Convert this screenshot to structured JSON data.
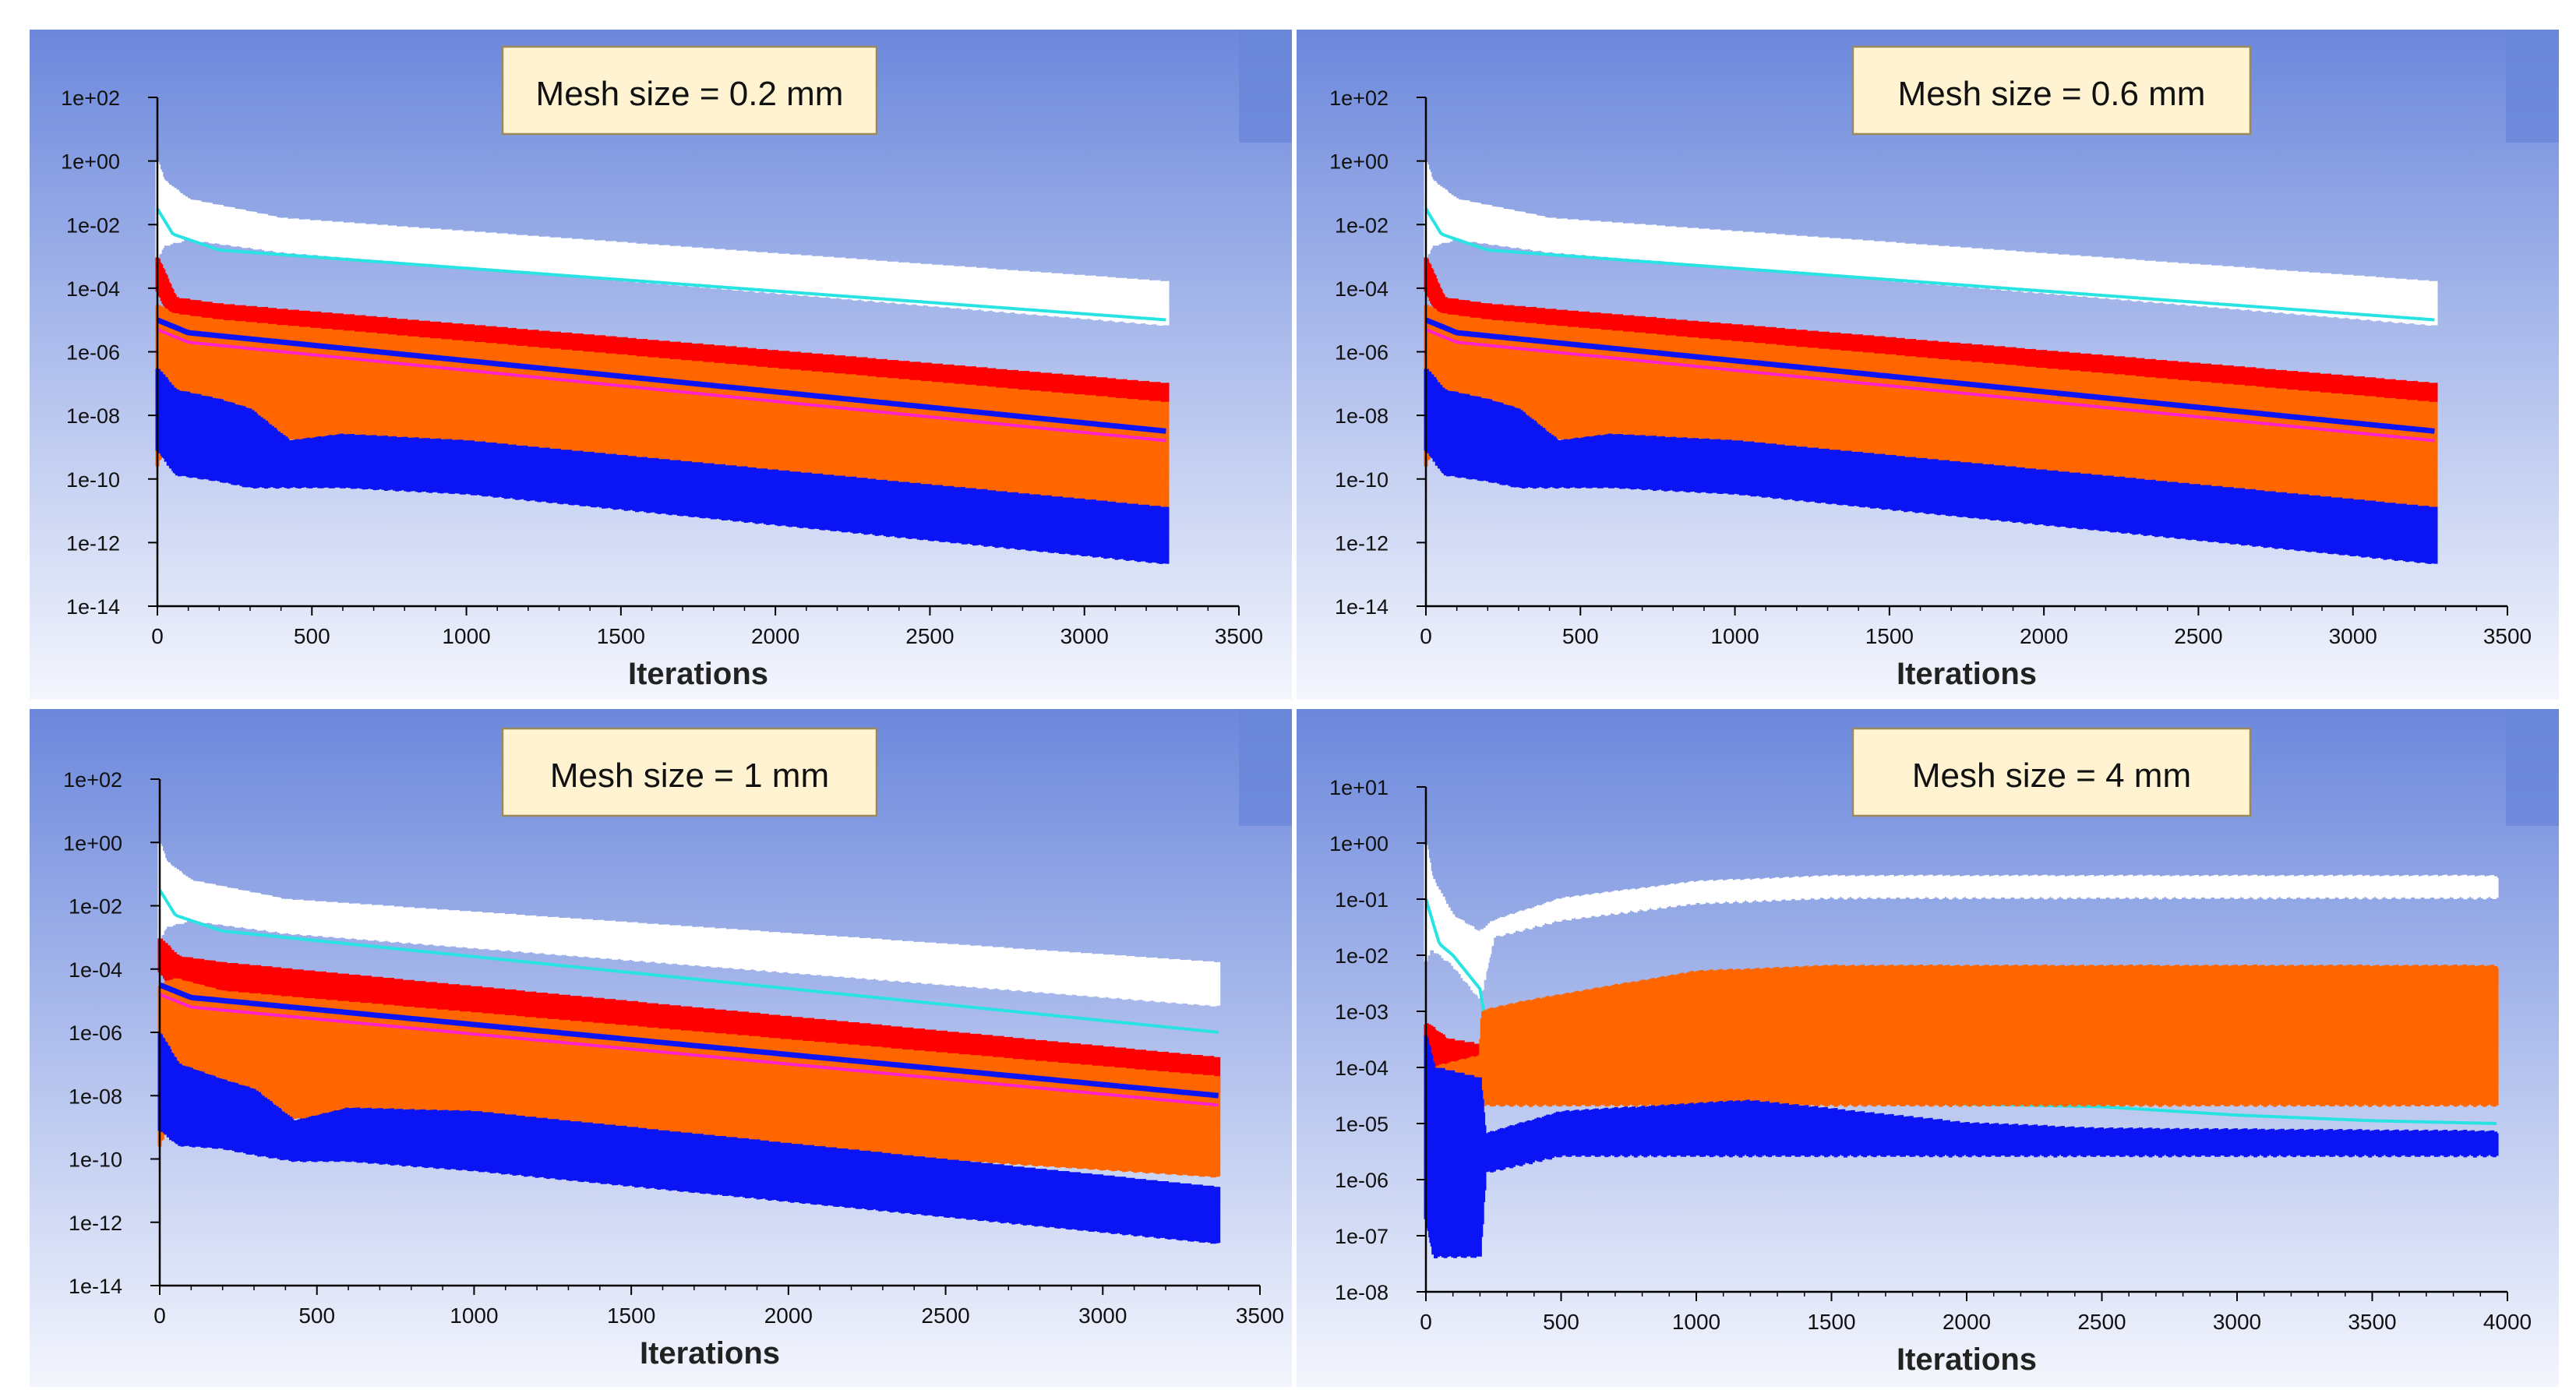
{
  "colors": {
    "panel_top": "#6c88dc",
    "panel_bottom": "#f4f6fd",
    "white_band": "#ffffff",
    "cyan_line": "#29e3e3",
    "red_band": "#ff0000",
    "blue_line": "#1a1aff",
    "orange_band": "#ff6600",
    "blue_band": "#0a14f5",
    "magenta_line": "#ff22cc",
    "title_box_fill": "#fff3d1",
    "title_box_border": "#9a8a5a"
  },
  "chart_data": [
    {
      "type": "line",
      "title": "Mesh size = 0.2 mm",
      "xlabel": "Iterations",
      "ylabel": "",
      "xlim": [
        0,
        3500
      ],
      "ylim_exp": [
        -14,
        2
      ],
      "x_ticks": [
        "0",
        "500",
        "1000",
        "1500",
        "2000",
        "2500",
        "3000",
        "3500"
      ],
      "y_ticks": [
        "1e-14",
        "1e-12",
        "1e-10",
        "1e-08",
        "1e-06",
        "1e-04",
        "1e-02",
        "1e+00",
        "1e+02"
      ],
      "end_iteration": 3270,
      "series": [
        {
          "name": "white-band",
          "kind": "band",
          "color": "white",
          "x": [
            0,
            20,
            100,
            400,
            3270
          ],
          "low": [
            -3,
            -2.6,
            -2.4,
            -2.8,
            -5.1
          ],
          "high": [
            0,
            -0.6,
            -1.2,
            -1.8,
            -3.8
          ]
        },
        {
          "name": "cyan-line",
          "kind": "line",
          "color": "cyan",
          "x": [
            0,
            50,
            200,
            3270
          ],
          "y": [
            -1.5,
            -2.3,
            -2.8,
            -5.0
          ]
        },
        {
          "name": "red-band",
          "kind": "band",
          "color": "red",
          "x": [
            0,
            60,
            200,
            3270
          ],
          "low": [
            -4,
            -5.3,
            -5.5,
            -8.3
          ],
          "high": [
            -3,
            -4.3,
            -4.5,
            -7.0
          ]
        },
        {
          "name": "orange-band",
          "kind": "band",
          "color": "orange",
          "x": [
            0,
            50,
            200,
            3270
          ],
          "low": [
            -9.5,
            -8.3,
            -8.5,
            -10.9
          ],
          "high": [
            -4.5,
            -4.8,
            -5.0,
            -7.6
          ]
        },
        {
          "name": "blue-line",
          "kind": "line",
          "color": "blue",
          "x": [
            0,
            100,
            3270
          ],
          "y": [
            -5,
            -5.4,
            -8.5
          ]
        },
        {
          "name": "magenta-line",
          "kind": "line",
          "color": "magenta",
          "x": [
            0,
            100,
            3270
          ],
          "y": [
            -5.3,
            -5.7,
            -8.8
          ]
        },
        {
          "name": "blue-band",
          "kind": "band",
          "color": "blue",
          "x": [
            0,
            60,
            200,
            300,
            430,
            600,
            1000,
            3270
          ],
          "low": [
            -9,
            -9.8,
            -10.0,
            -10.2,
            -10.2,
            -10.2,
            -10.4,
            -12.6
          ],
          "high": [
            -6.5,
            -7.2,
            -7.5,
            -7.8,
            -8.8,
            -8.6,
            -8.8,
            -10.9
          ]
        }
      ]
    },
    {
      "type": "line",
      "title": "Mesh size = 0.6 mm",
      "xlabel": "Iterations",
      "ylabel": "",
      "xlim": [
        0,
        3500
      ],
      "ylim_exp": [
        -14,
        2
      ],
      "x_ticks": [
        "0",
        "500",
        "1000",
        "1500",
        "2000",
        "2500",
        "3000",
        "3500"
      ],
      "y_ticks": [
        "1e-14",
        "1e-12",
        "1e-10",
        "1e-08",
        "1e-06",
        "1e-04",
        "1e-02",
        "1e+00",
        "1e+02"
      ],
      "end_iteration": 3270,
      "series": [
        {
          "name": "white-band",
          "kind": "band",
          "color": "white",
          "x": [
            0,
            20,
            100,
            400,
            3270
          ],
          "low": [
            -3,
            -2.6,
            -2.4,
            -2.8,
            -5.1
          ],
          "high": [
            0,
            -0.6,
            -1.2,
            -1.8,
            -3.8
          ]
        },
        {
          "name": "cyan-line",
          "kind": "line",
          "color": "cyan",
          "x": [
            0,
            50,
            200,
            3270
          ],
          "y": [
            -1.5,
            -2.3,
            -2.8,
            -5.0
          ]
        },
        {
          "name": "red-band",
          "kind": "band",
          "color": "red",
          "x": [
            0,
            60,
            200,
            3270
          ],
          "low": [
            -4,
            -5.3,
            -5.5,
            -8.3
          ],
          "high": [
            -3,
            -4.3,
            -4.5,
            -7.0
          ]
        },
        {
          "name": "orange-band",
          "kind": "band",
          "color": "orange",
          "x": [
            0,
            50,
            200,
            3270
          ],
          "low": [
            -9.5,
            -8.3,
            -8.5,
            -10.9
          ],
          "high": [
            -4.5,
            -4.8,
            -5.0,
            -7.6
          ]
        },
        {
          "name": "blue-line",
          "kind": "line",
          "color": "blue",
          "x": [
            0,
            100,
            3270
          ],
          "y": [
            -5,
            -5.4,
            -8.5
          ]
        },
        {
          "name": "magenta-line",
          "kind": "line",
          "color": "magenta",
          "x": [
            0,
            100,
            3270
          ],
          "y": [
            -5.3,
            -5.7,
            -8.8
          ]
        },
        {
          "name": "blue-band",
          "kind": "band",
          "color": "blue",
          "x": [
            0,
            60,
            200,
            300,
            430,
            600,
            1000,
            3270
          ],
          "low": [
            -9,
            -9.8,
            -10.0,
            -10.2,
            -10.2,
            -10.2,
            -10.4,
            -12.6
          ],
          "high": [
            -6.5,
            -7.2,
            -7.5,
            -7.8,
            -8.8,
            -8.6,
            -8.8,
            -10.9
          ]
        }
      ]
    },
    {
      "type": "line",
      "title": "Mesh size = 1 mm",
      "xlabel": "Iterations",
      "ylabel": "",
      "xlim": [
        0,
        3500
      ],
      "ylim_exp": [
        -14,
        2
      ],
      "x_ticks": [
        "0",
        "500",
        "1000",
        "1500",
        "2000",
        "2500",
        "3000",
        "3500"
      ],
      "y_ticks": [
        "1e-14",
        "1e-12",
        "1e-10",
        "1e-08",
        "1e-06",
        "1e-04",
        "1e-02",
        "1e+00",
        "1e+02"
      ],
      "end_iteration": 3370,
      "series": [
        {
          "name": "white-band",
          "kind": "band",
          "color": "white",
          "x": [
            0,
            20,
            100,
            400,
            3370
          ],
          "low": [
            -3,
            -2.6,
            -2.4,
            -2.8,
            -5.1
          ],
          "high": [
            0,
            -0.6,
            -1.2,
            -1.8,
            -3.8
          ]
        },
        {
          "name": "cyan-line",
          "kind": "line",
          "color": "cyan",
          "x": [
            0,
            50,
            200,
            3370
          ],
          "y": [
            -1.5,
            -2.3,
            -2.8,
            -6.0
          ]
        },
        {
          "name": "red-band",
          "kind": "band",
          "color": "red",
          "x": [
            0,
            60,
            200,
            3370
          ],
          "low": [
            -4,
            -4.9,
            -5.0,
            -7.9
          ],
          "high": [
            -3,
            -3.6,
            -3.8,
            -6.8
          ]
        },
        {
          "name": "orange-band",
          "kind": "band",
          "color": "orange",
          "x": [
            0,
            50,
            200,
            3370
          ],
          "low": [
            -9.5,
            -8.3,
            -8.5,
            -10.5
          ],
          "high": [
            -4.5,
            -4.3,
            -4.7,
            -7.4
          ]
        },
        {
          "name": "blue-line",
          "kind": "line",
          "color": "blue",
          "x": [
            0,
            100,
            3370
          ],
          "y": [
            -4.5,
            -4.9,
            -8.0
          ]
        },
        {
          "name": "magenta-line",
          "kind": "line",
          "color": "magenta",
          "x": [
            0,
            100,
            3370
          ],
          "y": [
            -4.8,
            -5.2,
            -8.3
          ]
        },
        {
          "name": "blue-band",
          "kind": "band",
          "color": "blue",
          "x": [
            0,
            60,
            200,
            300,
            430,
            600,
            1000,
            3370
          ],
          "low": [
            -9,
            -9.5,
            -9.6,
            -9.8,
            -10.0,
            -10.0,
            -10.3,
            -12.6
          ],
          "high": [
            -6.0,
            -7.0,
            -7.5,
            -7.8,
            -8.8,
            -8.4,
            -8.5,
            -10.9
          ]
        }
      ]
    },
    {
      "type": "line",
      "title": "Mesh size = 4 mm",
      "xlabel": "Iterations",
      "ylabel": "",
      "xlim": [
        0,
        4000
      ],
      "ylim_exp": [
        -8,
        1
      ],
      "x_ticks": [
        "0",
        "500",
        "1000",
        "1500",
        "2000",
        "2500",
        "3000",
        "3500",
        "4000"
      ],
      "y_ticks": [
        "1e-08",
        "1e-07",
        "1e-06",
        "1e-05",
        "1e-04",
        "1e-03",
        "1e-02",
        "1e-01",
        "1e+00",
        "1e+01"
      ],
      "end_iteration": 3960,
      "series": [
        {
          "name": "white-band",
          "kind": "band",
          "color": "white",
          "x": [
            0,
            20,
            100,
            200,
            250,
            500,
            1000,
            1500,
            3960
          ],
          "low": [
            -2,
            -1.8,
            -2.1,
            -2.7,
            -1.6,
            -1.3,
            -1.0,
            -0.9,
            -0.9
          ],
          "high": [
            0,
            -0.6,
            -1.3,
            -1.6,
            -1.4,
            -1.0,
            -0.7,
            -0.6,
            -0.6
          ]
        },
        {
          "name": "cyan-line",
          "kind": "line",
          "color": "cyan",
          "x": [
            0,
            50,
            100,
            200,
            230,
            800,
            1500,
            2500,
            3000,
            3500,
            3960
          ],
          "y": [
            -1,
            -1.8,
            -2.0,
            -2.6,
            -3.5,
            -4.6,
            -4.6,
            -4.7,
            -4.85,
            -4.95,
            -5.0
          ]
        },
        {
          "name": "red-band",
          "kind": "band",
          "color": "red",
          "x": [
            0,
            80,
            200
          ],
          "low": [
            -4,
            -4.0,
            -4.0
          ],
          "high": [
            -3.2,
            -3.5,
            -3.6
          ]
        },
        {
          "name": "orange-band",
          "kind": "band",
          "color": "orange",
          "x": [
            0,
            30,
            200,
            210,
            400,
            1000,
            1500,
            3960
          ],
          "low": [
            -5,
            -5.8,
            -5.9,
            -4.6,
            -4.6,
            -4.6,
            -4.6,
            -4.6
          ],
          "high": [
            -3.5,
            -4.0,
            -3.8,
            -3.0,
            -2.8,
            -2.3,
            -2.2,
            -2.2
          ]
        },
        {
          "name": "blue-band",
          "kind": "band",
          "color": "blue",
          "x": [
            0,
            30,
            200,
            220,
            500,
            1200,
            2000,
            2500,
            3960
          ],
          "low": [
            -6.6,
            -7.3,
            -7.3,
            -5.8,
            -5.5,
            -5.5,
            -5.5,
            -5.5,
            -5.5
          ],
          "high": [
            -3.4,
            -4.0,
            -4.2,
            -5.2,
            -4.8,
            -4.6,
            -5.0,
            -5.1,
            -5.15
          ]
        }
      ]
    }
  ]
}
